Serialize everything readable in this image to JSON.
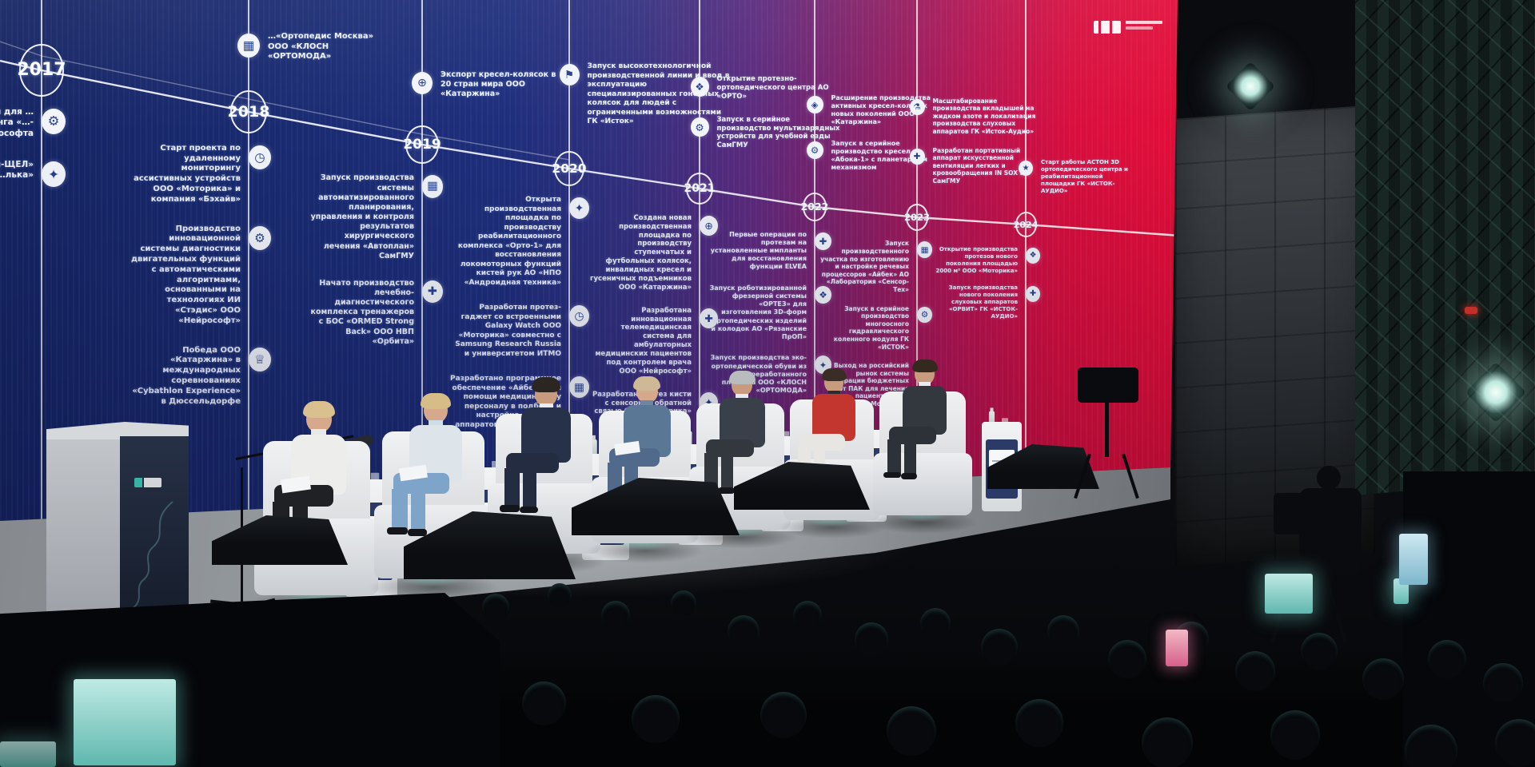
{
  "screen": {
    "palette": {
      "blue": "#1a2b72",
      "purple": "#5c2a7e",
      "magenta": "#b81350",
      "red": "#e70d37",
      "line": "#ffffff",
      "text": "#eef2ff"
    },
    "logo": {
      "name": "event-logo"
    },
    "timeline": [
      {
        "year": "2017",
        "above": [],
        "below": [
          {
            "icon": "robot-icon",
            "glyph": "⚙",
            "text": "…одство …ы для …онного …оринга «…-ИОМ» …ософта"
          },
          {
            "icon": "prosthesis-icon",
            "glyph": "✦",
            "text": "…дство «…асты-ЩЕЛ» «…лька»"
          }
        ]
      },
      {
        "year": "2018",
        "above": [
          {
            "icon": "shoe-icon",
            "glyph": "▦",
            "text": "…«Ортопедис Москва» ООО «КЛОСН «ОРТОМОДА»"
          }
        ],
        "below": [
          {
            "icon": "watch-icon",
            "glyph": "◷",
            "text": "Старт проекта по удаленному мониторингу ассистивных устройств ООО «Моторика» и компания «Бэхайв»"
          },
          {
            "icon": "gear-icon",
            "glyph": "⚙",
            "text": "Производство инновационной системы диагностики двигательных функций с автоматическими алгоритмами, основанными на технологиях ИИ «Стэдис» ООО «Нейрософт»"
          },
          {
            "icon": "trophy-icon",
            "glyph": "♕",
            "text": "Победа ООО «Катаржина» в международных соревнованиях «Cybathlon Experience» в Дюссельдорфе"
          }
        ]
      },
      {
        "year": "2019",
        "above": [
          {
            "icon": "globe-icon",
            "glyph": "⊕",
            "text": "Экспорт кресел-колясок в 20 стран мира ООО «Катаржина»"
          }
        ],
        "below": [
          {
            "icon": "monitor-icon",
            "glyph": "▦",
            "text": "Запуск производства системы автоматизированного планирования, управления и контроля результатов хирургического лечения «Автоплан» СамГМУ"
          },
          {
            "icon": "medical-icon",
            "glyph": "✚",
            "text": "Начато производство лечебно-диагностического комплекса тренажеров с БОС «ORMED Strong Back» ООО НВП «Орбита»"
          }
        ]
      },
      {
        "year": "2020",
        "above": [
          {
            "icon": "flag-icon",
            "glyph": "⚑",
            "text": "Запуск высокотехнологичной производственной линии и ввод в эксплуатацию специализированных гоночных колясок для людей с ограниченными возможностями ГК «Исток»"
          }
        ],
        "below": [
          {
            "icon": "hand-icon",
            "glyph": "✦",
            "text": "Открыта производственная площадка по производству реабилитационного комплекса «Орто-1» для восстановления локомоторных функций кистей рук АО «НПО «Андроидная техника»"
          },
          {
            "icon": "smartwatch-icon",
            "glyph": "◷",
            "text": "Разработан протез-гаджет со встроенными Galaxy Watch ООО «Моторика» совместно с Samsung Research Russia и университетом ИТМО"
          },
          {
            "icon": "software-icon",
            "glyph": "▦",
            "text": "Разработано программное обеспечение «Айбек» для помощи медицинскому персоналу в подборе и настройке слуховых аппаратов ООО «Аурика»"
          }
        ]
      },
      {
        "year": "2021",
        "above": [
          {
            "icon": "building-icon",
            "glyph": "❖",
            "text": "Открытие протезно-ортопедического центра АО «ОРТО»"
          },
          {
            "icon": "gear-icon",
            "glyph": "⚙",
            "text": "Запуск в серийное производство мультизарядных устройств для учебной езды СамГМУ"
          }
        ],
        "below": [
          {
            "icon": "wheelchair-icon",
            "glyph": "⊕",
            "text": "Создана новая производственная площадка по производству ступенчатых и футбольных колясок, инвалидных кресел и гусеничных подъемников ООО «Катаржина»"
          },
          {
            "icon": "telemed-icon",
            "glyph": "✚",
            "text": "Разработана инновационная телемедицинская система для амбулаторных медицинских пациентов под контролем врача ООО «Нейрософт»"
          },
          {
            "icon": "hand-icon",
            "glyph": "✦",
            "text": "Разработан протез кисти с сенсорной обратной связью ООО «Моторика»"
          }
        ]
      },
      {
        "year": "2022",
        "above": [
          {
            "icon": "wheel-icon",
            "glyph": "◈",
            "text": "Расширение производства активных кресел-колясок новых поколений ООО «Катаржина»"
          },
          {
            "icon": "gear-icon",
            "glyph": "⚙",
            "text": "Запуск в серийное производство кресел «Абока-1» с планетарным механизмом"
          }
        ],
        "below": [
          {
            "icon": "implant-icon",
            "glyph": "✚",
            "text": "Первые операции по протезам на установленные импланты для восстановления функции ELVEA"
          },
          {
            "icon": "mill-icon",
            "glyph": "❖",
            "text": "Запуск роботизированной фрезерной системы «ОРТЕЗ» для изготовления 3D-форм ортопедических изделий и колодок АО «Рязанские ПрОП»"
          },
          {
            "icon": "shoe-icon",
            "glyph": "✦",
            "text": "Запуск производства эко-ортопедической обуви из переработанного пластика ООО «КЛОСН «ОРТОМОДА»"
          }
        ]
      },
      {
        "year": "2023",
        "above": [
          {
            "icon": "flask-icon",
            "glyph": "⚗",
            "text": "Масштабирование производства вкладышей на жидком азоте и локализация производства слуховых аппаратов ГК «Исток-Аудио»"
          },
          {
            "icon": "medical-icon",
            "glyph": "✚",
            "text": "Разработан портативный аппарат искусственной вентиляции легких и кровообращения IN SOX ИО СамГМУ"
          }
        ],
        "below": [
          {
            "icon": "chip-icon",
            "glyph": "▦",
            "text": "Запуск производственного участка по изготовлению и настройке речевых процессоров «Айбек» АО «Лаборатория «Сенсор-Тех»"
          },
          {
            "icon": "knee-icon",
            "glyph": "⚙",
            "text": "Запуск в серийное производство многоосного гидравлического коленного модуля ГК «ИСТОК»"
          },
          {
            "icon": "market-icon",
            "glyph": "⊕",
            "text": "Выход на российский рынок системы генерации бюджетных карт ПАК для лечения пациентов ООО «Моторика»"
          }
        ]
      },
      {
        "year": "2024",
        "above": [
          {
            "icon": "star-icon",
            "glyph": "★",
            "text": "Старт работы АСТОН 3D ортопедического центра и реабилитационной площадки ГК «ИСТОК-АУДИО»"
          }
        ],
        "below": [
          {
            "icon": "factory-icon",
            "glyph": "❖",
            "text": "Открытие производства протезов нового поколения площадью 2000 м² ООО «Моторика»"
          },
          {
            "icon": "hearing-icon",
            "glyph": "✚",
            "text": "Запуск производства нового поколения слуховых аппаратов «ОРВИТ» ГК «ИСТОК-АУДИО»"
          }
        ]
      }
    ]
  },
  "stage": {
    "panelists": [
      {
        "name": "panelist-1",
        "desc": "woman, blonde bob, white suit, black trousers, reading notes",
        "hair": "#d9c08e",
        "jacket": "#ededec",
        "trousers": "#1f2125",
        "skin": "#d7a98c",
        "shirt": "#e8e8e8"
      },
      {
        "name": "panelist-2",
        "desc": "woman, blonde, pale blue suit, blue trousers",
        "hair": "#d6bd87",
        "jacket": "#dde5ea",
        "trousers": "#7fa4c9",
        "skin": "#d7a98c",
        "shirt": "#cfdde6"
      },
      {
        "name": "panelist-3",
        "desc": "man, dark hair, navy suit, white shirt, dark tie, speaking",
        "hair": "#2b2622",
        "jacket": "#27324a",
        "trousers": "#232c40",
        "skin": "#c99b7e",
        "shirt": "#e9ecef",
        "tie": "#3a4d7a"
      },
      {
        "name": "panelist-4",
        "desc": "woman, blonde updo, steel-blue dress",
        "hair": "#cfb896",
        "jacket": "#5b7796",
        "trousers": "#51698a",
        "skin": "#d7a98c",
        "shirt": "#6d87a3"
      },
      {
        "name": "panelist-5",
        "desc": "man, gray hair, dark gray suit, white shirt",
        "hair": "#b9bcbf",
        "jacket": "#3a4049",
        "trousers": "#33383f",
        "skin": "#c99b7e",
        "shirt": "#e9ecef"
      },
      {
        "name": "panelist-6",
        "desc": "woman, dark bob, red jacket, light trousers",
        "hair": "#3a2d26",
        "jacket": "#c2362f",
        "trousers": "#e8e6e2",
        "skin": "#c99b7e",
        "shirt": "#2c2c30"
      },
      {
        "name": "panelist-7",
        "desc": "man, dark hair and beard, charcoal suit, white shirt, orange tie",
        "hair": "#33291f",
        "jacket": "#33383f",
        "trousers": "#2d3238",
        "skin": "#c99b7e",
        "shirt": "#e9ecef",
        "tie": "#c87b34"
      }
    ]
  }
}
